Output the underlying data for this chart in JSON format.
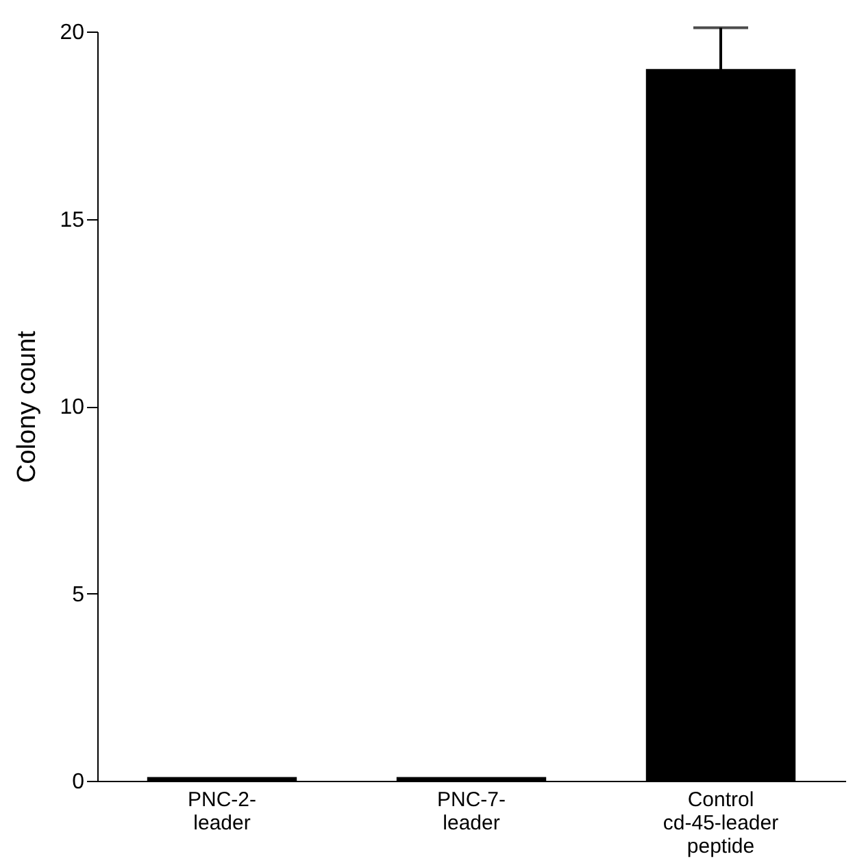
{
  "chart_data": {
    "type": "bar",
    "ylabel": "Colony count",
    "categories": [
      "PNC-2-\nleader",
      "PNC-7-\nleader",
      "Control\ncd-45-leader\npeptide"
    ],
    "values": [
      0.1,
      0.1,
      19
    ],
    "errors": [
      null,
      null,
      1.1
    ],
    "color": "#000000",
    "ylim": [
      0,
      20
    ],
    "yticks": [
      0,
      5,
      10,
      15,
      20
    ],
    "grid": false
  }
}
